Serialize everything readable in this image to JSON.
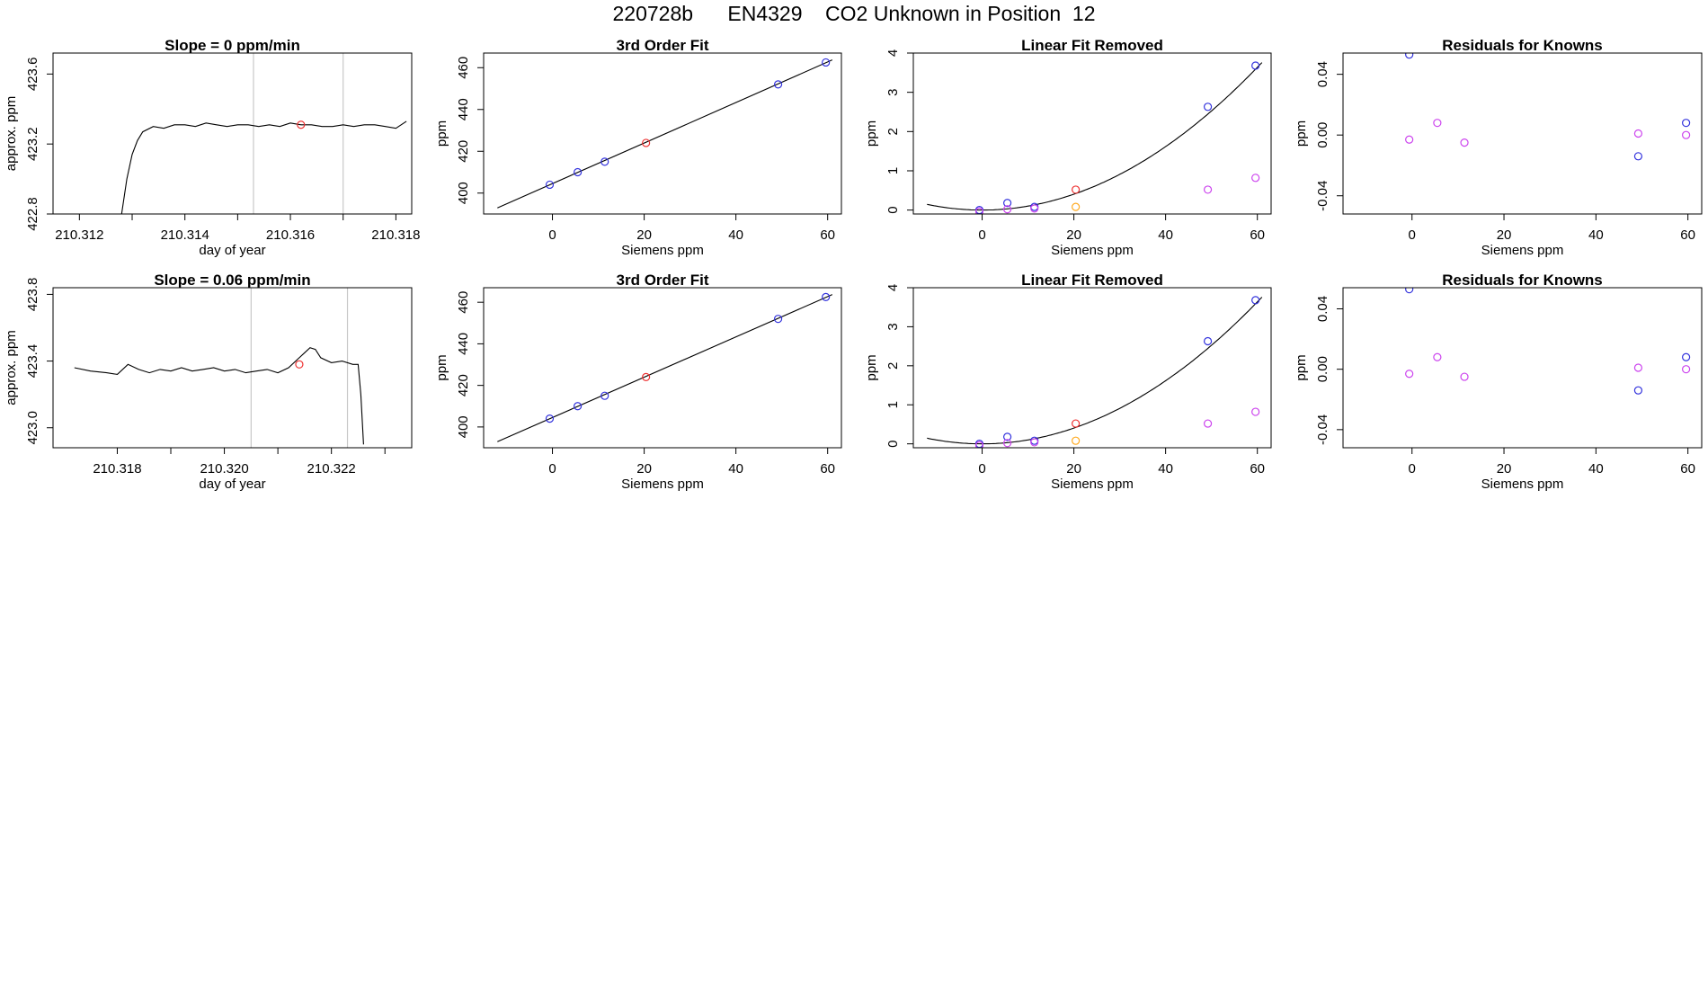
{
  "page": {
    "title": "220728b      EN4329    CO2 Unknown in Position  12"
  },
  "colors": {
    "line": "#000000",
    "blue": "#3333dd",
    "red": "#ee3333",
    "magenta": "#cc44ee",
    "orange": "#ffaa22",
    "vline": "#c8c8c8"
  },
  "chart_data": [
    {
      "id": "r1c1",
      "type": "line",
      "title": "Slope =  0  ppm/min",
      "xlabel": "day of year",
      "ylabel": "approx. ppm",
      "xlim": [
        210.3115,
        210.3183
      ],
      "ylim": [
        422.8,
        423.72
      ],
      "xticks": [
        210.312,
        210.313,
        210.314,
        210.315,
        210.316,
        210.317,
        210.318
      ],
      "xtick_labels": [
        "210.312",
        "",
        "210.314",
        "",
        "210.316",
        "",
        "210.318"
      ],
      "yticks": [
        422.8,
        423.2,
        423.6
      ],
      "ytick_labels": [
        "422.8",
        "423.2",
        "423.6"
      ],
      "vlines": [
        210.3153,
        210.317
      ],
      "series": {
        "x": [
          210.3128,
          210.3129,
          210.313,
          210.3131,
          210.3132,
          210.3134,
          210.3136,
          210.3138,
          210.314,
          210.3142,
          210.3144,
          210.3146,
          210.3148,
          210.315,
          210.3152,
          210.3154,
          210.3156,
          210.3158,
          210.316,
          210.3162,
          210.3164,
          210.3166,
          210.3168,
          210.317,
          210.3172,
          210.3174,
          210.3176,
          210.3178,
          210.318,
          210.3182
        ],
        "y": [
          422.8,
          423.0,
          423.14,
          423.22,
          423.27,
          423.3,
          423.29,
          423.31,
          423.31,
          423.3,
          423.32,
          423.31,
          423.3,
          423.31,
          423.31,
          423.3,
          423.31,
          423.3,
          423.32,
          423.31,
          423.31,
          423.3,
          423.3,
          423.31,
          423.3,
          423.31,
          423.31,
          423.3,
          423.29,
          423.33
        ]
      },
      "markers": [
        {
          "x": 210.3162,
          "y": 423.31,
          "color": "red"
        }
      ]
    },
    {
      "id": "r1c2",
      "type": "scatter",
      "title": "3rd Order Fit",
      "xlabel": "Siemens ppm",
      "ylabel": "ppm",
      "xlim": [
        -15,
        63
      ],
      "ylim": [
        390,
        467
      ],
      "xticks": [
        0,
        20,
        40,
        60
      ],
      "xtick_labels": [
        "0",
        "20",
        "40",
        "60"
      ],
      "yticks": [
        400,
        420,
        440,
        460
      ],
      "ytick_labels": [
        "400",
        "420",
        "440",
        "460"
      ],
      "fit_line": {
        "x": [
          -12,
          61
        ],
        "y": [
          392.9,
          463.7
        ]
      },
      "points": [
        {
          "x": -0.6,
          "y": 404.0,
          "color": "blue"
        },
        {
          "x": 5.5,
          "y": 410.0,
          "color": "blue"
        },
        {
          "x": 11.4,
          "y": 415.0,
          "color": "blue"
        },
        {
          "x": 20.4,
          "y": 424.0,
          "color": "red"
        },
        {
          "x": 49.2,
          "y": 452.0,
          "color": "blue"
        },
        {
          "x": 59.6,
          "y": 462.5,
          "color": "blue"
        }
      ]
    },
    {
      "id": "r1c3",
      "type": "scatter",
      "title": "Linear Fit Removed",
      "xlabel": "Siemens ppm",
      "ylabel": "ppm",
      "xlim": [
        -15,
        63
      ],
      "ylim": [
        -0.1,
        4.0
      ],
      "xticks": [
        0,
        20,
        40,
        60
      ],
      "xtick_labels": [
        "0",
        "20",
        "40",
        "60"
      ],
      "yticks": [
        0,
        1,
        2,
        3,
        4
      ],
      "ytick_labels": [
        "0",
        "1",
        "2",
        "3",
        "4"
      ],
      "fit_curve": {
        "x0": 0,
        "y0": 0.0,
        "k": 0.00101,
        "x_from": -12,
        "x_to": 61
      },
      "points": [
        {
          "x": -0.6,
          "y": 0.0,
          "color": "blue"
        },
        {
          "x": -0.6,
          "y": -0.04,
          "color": "magenta"
        },
        {
          "x": 5.5,
          "y": 0.18,
          "color": "blue"
        },
        {
          "x": 5.5,
          "y": 0.02,
          "color": "magenta"
        },
        {
          "x": 11.4,
          "y": 0.08,
          "color": "blue"
        },
        {
          "x": 11.4,
          "y": 0.04,
          "color": "magenta"
        },
        {
          "x": 20.4,
          "y": 0.52,
          "color": "red"
        },
        {
          "x": 20.4,
          "y": 0.08,
          "color": "orange"
        },
        {
          "x": 49.2,
          "y": 2.63,
          "color": "blue"
        },
        {
          "x": 49.2,
          "y": 0.52,
          "color": "magenta"
        },
        {
          "x": 59.6,
          "y": 3.68,
          "color": "blue"
        },
        {
          "x": 59.6,
          "y": 0.82,
          "color": "magenta"
        }
      ]
    },
    {
      "id": "r1c4",
      "type": "scatter",
      "title": "Residuals for Knowns",
      "xlabel": "Siemens ppm",
      "ylabel": "ppm",
      "xlim": [
        -15,
        63
      ],
      "ylim": [
        -0.052,
        0.054
      ],
      "xticks": [
        0,
        20,
        40,
        60
      ],
      "xtick_labels": [
        "0",
        "20",
        "40",
        "60"
      ],
      "yticks": [
        -0.04,
        0.0,
        0.04
      ],
      "ytick_labels": [
        "-0.04",
        "0.00",
        "0.04"
      ],
      "points": [
        {
          "x": -0.6,
          "y": 0.053,
          "color": "blue"
        },
        {
          "x": -0.6,
          "y": -0.003,
          "color": "magenta"
        },
        {
          "x": 5.5,
          "y": 0.008,
          "color": "magenta"
        },
        {
          "x": 11.4,
          "y": -0.005,
          "color": "magenta"
        },
        {
          "x": 49.2,
          "y": 0.001,
          "color": "magenta"
        },
        {
          "x": 49.2,
          "y": -0.014,
          "color": "blue"
        },
        {
          "x": 59.6,
          "y": 0.008,
          "color": "blue"
        },
        {
          "x": 59.6,
          "y": 0.0,
          "color": "magenta"
        }
      ]
    },
    {
      "id": "r2c1",
      "type": "line",
      "title": "Slope =  0.06  ppm/min",
      "xlabel": "day of year",
      "ylabel": "approx. ppm",
      "xlim": [
        210.3168,
        210.3235
      ],
      "ylim": [
        422.88,
        423.84
      ],
      "xticks": [
        210.318,
        210.319,
        210.32,
        210.321,
        210.322,
        210.323
      ],
      "xtick_labels": [
        "210.318",
        "",
        "210.320",
        "",
        "210.322",
        ""
      ],
      "yticks": [
        423.0,
        423.4,
        423.8
      ],
      "ytick_labels": [
        "423.0",
        "423.4",
        "423.8"
      ],
      "vlines": [
        210.3205,
        210.3223
      ],
      "series": {
        "x": [
          210.3172,
          210.3175,
          210.3178,
          210.318,
          210.3182,
          210.3184,
          210.3186,
          210.3188,
          210.319,
          210.3192,
          210.3194,
          210.3196,
          210.3198,
          210.32,
          210.3202,
          210.3204,
          210.3206,
          210.3208,
          210.321,
          210.3212,
          210.3214,
          210.3215,
          210.3216,
          210.3217,
          210.3218,
          210.322,
          210.3222,
          210.3224,
          210.3225,
          210.32255,
          210.3226
        ],
        "y": [
          423.36,
          423.34,
          423.33,
          423.32,
          423.38,
          423.35,
          423.33,
          423.35,
          423.34,
          423.36,
          423.34,
          423.35,
          423.36,
          423.34,
          423.35,
          423.33,
          423.34,
          423.35,
          423.33,
          423.36,
          423.42,
          423.45,
          423.48,
          423.47,
          423.42,
          423.39,
          423.4,
          423.38,
          423.38,
          423.2,
          422.9
        ]
      },
      "markers": [
        {
          "x": 210.3214,
          "y": 423.38,
          "color": "red"
        }
      ]
    },
    {
      "id": "r2c2",
      "type": "scatter",
      "title": "3rd Order Fit",
      "xlabel": "Siemens ppm",
      "ylabel": "ppm",
      "xlim": [
        -15,
        63
      ],
      "ylim": [
        390,
        467
      ],
      "xticks": [
        0,
        20,
        40,
        60
      ],
      "xtick_labels": [
        "0",
        "20",
        "40",
        "60"
      ],
      "yticks": [
        400,
        420,
        440,
        460
      ],
      "ytick_labels": [
        "400",
        "420",
        "440",
        "460"
      ],
      "fit_line": {
        "x": [
          -12,
          61
        ],
        "y": [
          392.9,
          463.7
        ]
      },
      "points": [
        {
          "x": -0.6,
          "y": 404.0,
          "color": "blue"
        },
        {
          "x": 5.5,
          "y": 410.0,
          "color": "blue"
        },
        {
          "x": 11.4,
          "y": 415.0,
          "color": "blue"
        },
        {
          "x": 20.4,
          "y": 424.0,
          "color": "red"
        },
        {
          "x": 49.2,
          "y": 452.0,
          "color": "blue"
        },
        {
          "x": 59.6,
          "y": 462.5,
          "color": "blue"
        }
      ]
    },
    {
      "id": "r2c3",
      "type": "scatter",
      "title": "Linear Fit Removed",
      "xlabel": "Siemens ppm",
      "ylabel": "ppm",
      "xlim": [
        -15,
        63
      ],
      "ylim": [
        -0.1,
        4.0
      ],
      "xticks": [
        0,
        20,
        40,
        60
      ],
      "xtick_labels": [
        "0",
        "20",
        "40",
        "60"
      ],
      "yticks": [
        0,
        1,
        2,
        3,
        4
      ],
      "ytick_labels": [
        "0",
        "1",
        "2",
        "3",
        "4"
      ],
      "fit_curve": {
        "x0": 0,
        "y0": 0.0,
        "k": 0.00101,
        "x_from": -12,
        "x_to": 61
      },
      "points": [
        {
          "x": -0.6,
          "y": 0.0,
          "color": "blue"
        },
        {
          "x": -0.6,
          "y": -0.04,
          "color": "magenta"
        },
        {
          "x": 5.5,
          "y": 0.18,
          "color": "blue"
        },
        {
          "x": 5.5,
          "y": 0.02,
          "color": "magenta"
        },
        {
          "x": 11.4,
          "y": 0.08,
          "color": "blue"
        },
        {
          "x": 11.4,
          "y": 0.04,
          "color": "magenta"
        },
        {
          "x": 20.4,
          "y": 0.52,
          "color": "red"
        },
        {
          "x": 20.4,
          "y": 0.08,
          "color": "orange"
        },
        {
          "x": 49.2,
          "y": 2.63,
          "color": "blue"
        },
        {
          "x": 49.2,
          "y": 0.52,
          "color": "magenta"
        },
        {
          "x": 59.6,
          "y": 3.68,
          "color": "blue"
        },
        {
          "x": 59.6,
          "y": 0.82,
          "color": "magenta"
        }
      ]
    },
    {
      "id": "r2c4",
      "type": "scatter",
      "title": "Residuals for Knowns",
      "xlabel": "Siemens ppm",
      "ylabel": "ppm",
      "xlim": [
        -15,
        63
      ],
      "ylim": [
        -0.052,
        0.054
      ],
      "xticks": [
        0,
        20,
        40,
        60
      ],
      "xtick_labels": [
        "0",
        "20",
        "40",
        "60"
      ],
      "yticks": [
        -0.04,
        0.0,
        0.04
      ],
      "ytick_labels": [
        "-0.04",
        "0.00",
        "0.04"
      ],
      "points": [
        {
          "x": -0.6,
          "y": 0.053,
          "color": "blue"
        },
        {
          "x": -0.6,
          "y": -0.003,
          "color": "magenta"
        },
        {
          "x": 5.5,
          "y": 0.008,
          "color": "magenta"
        },
        {
          "x": 11.4,
          "y": -0.005,
          "color": "magenta"
        },
        {
          "x": 49.2,
          "y": 0.001,
          "color": "magenta"
        },
        {
          "x": 49.2,
          "y": -0.014,
          "color": "blue"
        },
        {
          "x": 59.6,
          "y": 0.008,
          "color": "blue"
        },
        {
          "x": 59.6,
          "y": 0.0,
          "color": "magenta"
        }
      ]
    }
  ]
}
